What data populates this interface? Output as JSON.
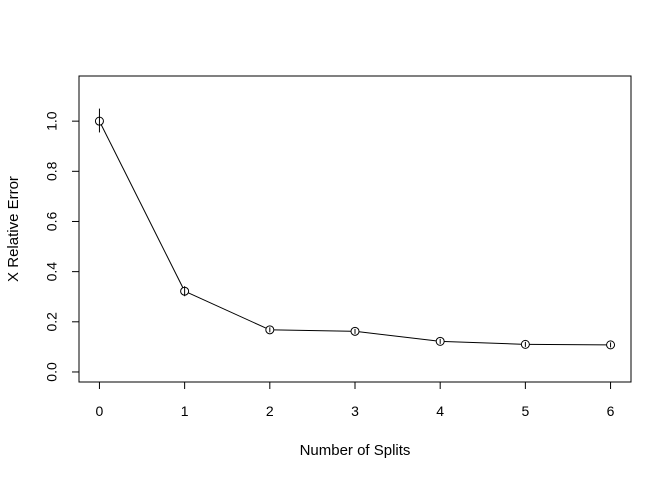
{
  "chart_data": {
    "type": "line",
    "title": "",
    "xlabel": "Number of Splits",
    "ylabel": "X Relative Error",
    "x": [
      0,
      1,
      2,
      3,
      4,
      5,
      6
    ],
    "series": [
      {
        "values": [
          1.0,
          0.322,
          0.168,
          0.162,
          0.122,
          0.11,
          0.108
        ],
        "error_low": [
          0.955,
          0.302,
          0.158,
          0.152,
          0.112,
          0.1,
          0.098
        ],
        "error_high": [
          1.05,
          0.342,
          0.178,
          0.172,
          0.132,
          0.12,
          0.118
        ]
      }
    ],
    "xlim": [
      -0.24,
      6.24
    ],
    "ylim": [
      -0.04,
      1.18
    ],
    "x_ticks": [
      "0",
      "1",
      "2",
      "3",
      "4",
      "5",
      "6"
    ],
    "y_ticks": [
      "0.0",
      "0.2",
      "0.4",
      "0.6",
      "0.8",
      "1.0"
    ],
    "marker": "open-circle",
    "grid": false,
    "legend": "none",
    "colors": {
      "line": "#000000",
      "background": "#ffffff"
    }
  }
}
